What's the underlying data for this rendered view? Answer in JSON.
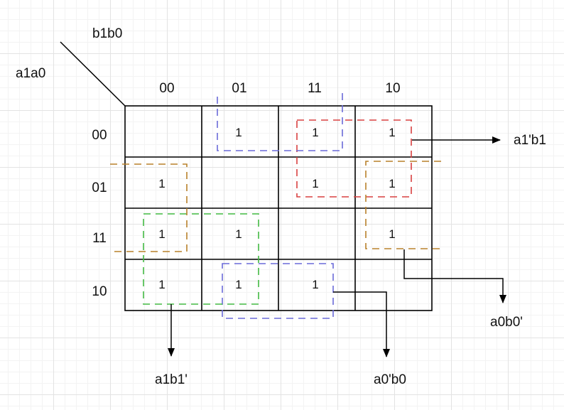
{
  "kmap": {
    "corner_row_var": "a1a0",
    "corner_col_var": "b1b0",
    "col_headers": [
      "00",
      "01",
      "11",
      "10"
    ],
    "row_headers": [
      "00",
      "01",
      "11",
      "10"
    ],
    "cells": [
      [
        "",
        "1",
        "1",
        "1"
      ],
      [
        "1",
        "",
        "1",
        "1"
      ],
      [
        "1",
        "1",
        "",
        "1"
      ],
      [
        "1",
        "1",
        "1",
        ""
      ]
    ]
  },
  "groups": [
    {
      "term": "a1'b1",
      "color": "#d94040"
    },
    {
      "term": "a0b0'",
      "color": "#b8802a"
    },
    {
      "term": "a1b1'",
      "color": "#44bb44"
    },
    {
      "term": "a0'b0",
      "color": "#6a6ad8"
    }
  ]
}
